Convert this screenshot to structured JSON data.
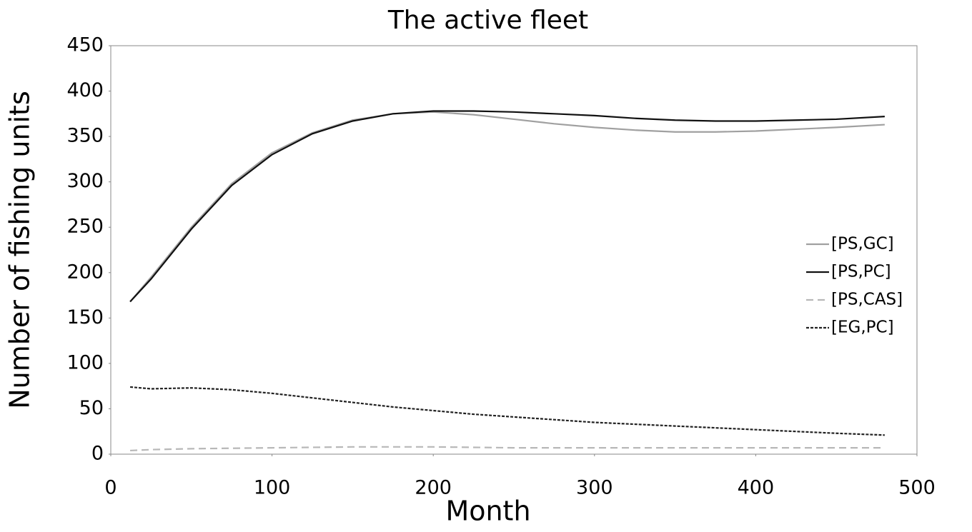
{
  "chart_data": {
    "type": "line",
    "title": "The active fleet",
    "x_label": "Month",
    "y_label": "Number of fishing units",
    "x": [
      12,
      25,
      50,
      75,
      100,
      125,
      150,
      175,
      200,
      225,
      250,
      275,
      300,
      325,
      350,
      375,
      400,
      425,
      450,
      480
    ],
    "series": [
      {
        "name": "[PS,GC]",
        "color": "#a0a0a0",
        "dash": "none",
        "values": [
          168,
          195,
          250,
          298,
          332,
          354,
          368,
          375,
          377,
          374,
          369,
          364,
          360,
          357,
          355,
          355,
          356,
          358,
          360,
          363
        ]
      },
      {
        "name": "[PS,PC]",
        "color": "#111111",
        "dash": "none",
        "values": [
          168,
          193,
          248,
          296,
          330,
          353,
          367,
          375,
          378,
          378,
          377,
          375,
          373,
          370,
          368,
          367,
          367,
          368,
          369,
          372
        ]
      },
      {
        "name": "[PS,CAS]",
        "color": "#b8b8b8",
        "dash": "10 6",
        "values": [
          4,
          5,
          6,
          6.5,
          7,
          7.5,
          8,
          8,
          8,
          7.5,
          7,
          7,
          7,
          7,
          7,
          7,
          7,
          7,
          7,
          7
        ]
      },
      {
        "name": "[EG,PC]",
        "color": "#222222",
        "dash": "4 2",
        "values": [
          74,
          72,
          73,
          71,
          67,
          62,
          57,
          52,
          48,
          44,
          41,
          38,
          35,
          33,
          31,
          29,
          27,
          25,
          23,
          21
        ]
      }
    ],
    "xlim": [
      0,
      500
    ],
    "xticks": [
      0,
      100,
      200,
      300,
      400,
      500
    ],
    "ylim": [
      0,
      450
    ],
    "yticks": [
      0,
      50,
      100,
      150,
      200,
      250,
      300,
      350,
      400,
      450
    ],
    "grid": false,
    "legend": "right"
  }
}
